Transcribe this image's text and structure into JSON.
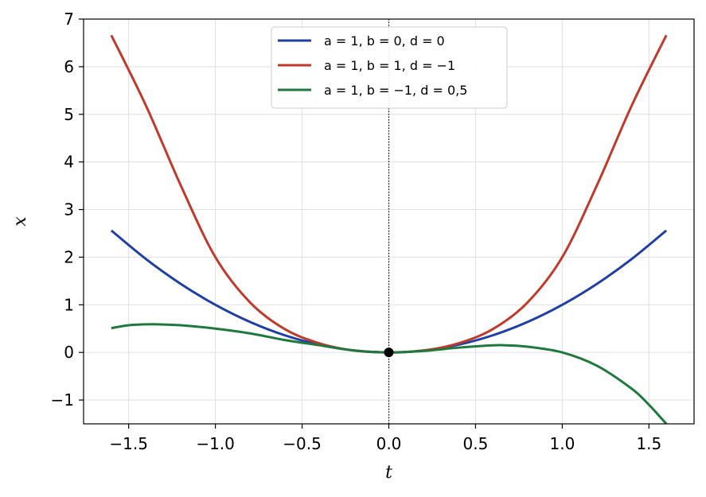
{
  "chart_data": {
    "type": "line",
    "xlabel": "t",
    "ylabel": "x",
    "xlim": [
      -1.76,
      1.76
    ],
    "ylim": [
      -1.5,
      7
    ],
    "xticks": [
      -1.5,
      -1.0,
      -0.5,
      0.0,
      0.5,
      1.0,
      1.5
    ],
    "xtick_labels": [
      "−1.5",
      "−1.0",
      "−0.5",
      "0.0",
      "0.5",
      "1.0",
      "1.5"
    ],
    "yticks": [
      -1,
      0,
      1,
      2,
      3,
      4,
      5,
      6,
      7
    ],
    "ytick_labels": [
      "−1",
      "0",
      "1",
      "2",
      "3",
      "4",
      "5",
      "6",
      "7"
    ],
    "grid": true,
    "legend_position": "top-center",
    "vertical_line": {
      "x": 0,
      "style": "dotted",
      "color": "#000000"
    },
    "marker": {
      "x": 0,
      "y": 0,
      "color": "#000000"
    },
    "series": [
      {
        "name": "a = 1, b = 0, d = 0",
        "color": "#1f3fa8",
        "x": [
          -1.6,
          -1.4,
          -1.2,
          -1.0,
          -0.8,
          -0.6,
          -0.4,
          -0.2,
          0.0,
          0.2,
          0.4,
          0.6,
          0.8,
          1.0,
          1.2,
          1.4,
          1.6
        ],
        "y": [
          2.56,
          1.96,
          1.44,
          1.0,
          0.64,
          0.36,
          0.16,
          0.04,
          0.0,
          0.04,
          0.16,
          0.36,
          0.64,
          1.0,
          1.44,
          1.96,
          2.56
        ]
      },
      {
        "name": "a = 1, b = 1, d = −1",
        "color": "#c0392b",
        "x": [
          -1.6,
          -1.4,
          -1.2,
          -1.0,
          -0.8,
          -0.6,
          -0.4,
          -0.2,
          0.0,
          0.2,
          0.4,
          0.6,
          0.8,
          1.0,
          1.2,
          1.4,
          1.6
        ],
        "y": [
          6.66,
          5.18,
          3.51,
          2.0,
          1.05,
          0.49,
          0.19,
          0.04,
          0.0,
          0.04,
          0.19,
          0.49,
          1.05,
          2.0,
          3.51,
          5.18,
          6.66
        ]
      },
      {
        "name": "a = 1, b = −1, d = 0,5",
        "color": "#1e7a3c",
        "x": [
          -1.6,
          -1.5,
          -1.4,
          -1.33,
          -1.2,
          -1.0,
          -0.8,
          -0.6,
          -0.4,
          -0.2,
          0.0,
          0.2,
          0.4,
          0.6,
          0.67,
          0.8,
          1.0,
          1.2,
          1.4,
          1.5,
          1.6
        ],
        "y": [
          0.51,
          0.57,
          0.59,
          0.59,
          0.57,
          0.5,
          0.4,
          0.26,
          0.15,
          0.04,
          0.0,
          0.03,
          0.1,
          0.15,
          0.15,
          0.12,
          0.0,
          -0.28,
          -0.76,
          -1.1,
          -1.5
        ]
      }
    ]
  }
}
